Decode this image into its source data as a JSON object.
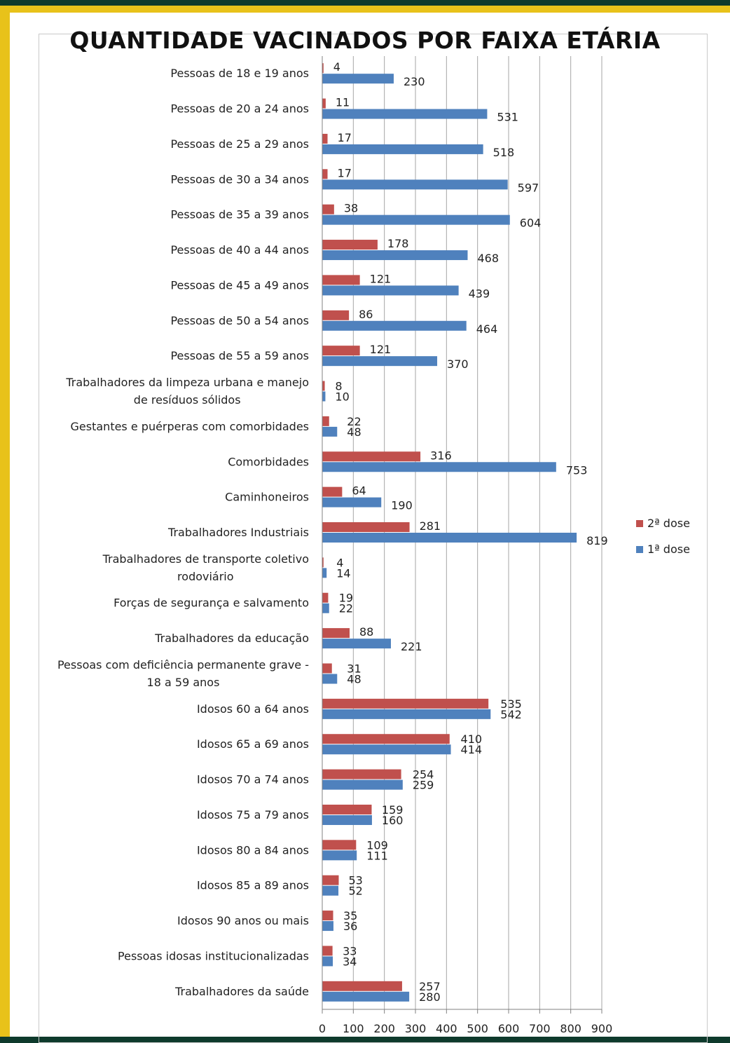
{
  "chart_data": {
    "type": "bar",
    "orientation": "horizontal",
    "title": "QUANTIDADE VACINADOS POR FAIXA ETÁRIA",
    "categories": [
      "Pessoas de 18 e 19 anos",
      "Pessoas de 20 a 24 anos",
      "Pessoas de 25 a 29 anos",
      "Pessoas de 30 a 34 anos",
      "Pessoas de 35 a 39 anos",
      "Pessoas de 40 a 44 anos",
      "Pessoas de 45 a 49 anos",
      "Pessoas de 50 a 54 anos",
      "Pessoas de 55 a 59 anos",
      "Trabalhadores da limpeza urbana e manejo de resíduos sólidos",
      "Gestantes e puérperas com comorbidades",
      "Comorbidades",
      "Caminhoneiros",
      "Trabalhadores Industriais",
      "Trabalhadores de transporte coletivo rodoviário",
      "Forças de segurança e salvamento",
      "Trabalhadores da educação",
      "Pessoas com deficiência permanente grave - 18 a 59 anos",
      "Idosos 60 a 64 anos",
      "Idosos 65 a 69 anos",
      "Idosos 70 a 74 anos",
      "Idosos 75 a 79 anos",
      "Idosos 80 a 84 anos",
      "Idosos 85 a 89 anos",
      "Idosos 90 anos ou mais",
      "Pessoas idosas institucionalizadas",
      "Trabalhadores da saúde"
    ],
    "category_lines": [
      [
        "Pessoas de 18 e 19 anos"
      ],
      [
        "Pessoas de 20 a 24 anos"
      ],
      [
        "Pessoas de 25 a 29 anos"
      ],
      [
        "Pessoas de 30 a 34 anos"
      ],
      [
        "Pessoas de 35 a 39 anos"
      ],
      [
        "Pessoas de 40 a 44 anos"
      ],
      [
        "Pessoas de 45 a 49 anos"
      ],
      [
        "Pessoas de 50 a 54 anos"
      ],
      [
        "Pessoas de 55 a 59 anos"
      ],
      [
        "Trabalhadores da limpeza urbana e manejo",
        "de resíduos sólidos"
      ],
      [
        "Gestantes e puérperas com comorbidades"
      ],
      [
        "Comorbidades"
      ],
      [
        "Caminhoneiros"
      ],
      [
        "Trabalhadores Industriais"
      ],
      [
        "Trabalhadores de transporte coletivo",
        "rodoviário"
      ],
      [
        "Forças de segurança e salvamento"
      ],
      [
        "Trabalhadores da educação"
      ],
      [
        "Pessoas com deficiência permanente grave -",
        "18 a 59 anos"
      ],
      [
        "Idosos 60 a 64 anos"
      ],
      [
        "Idosos 65 a 69 anos"
      ],
      [
        "Idosos 70 a 74 anos"
      ],
      [
        "Idosos 75 a 79 anos"
      ],
      [
        "Idosos 80 a 84 anos"
      ],
      [
        "Idosos 85 a 89 anos"
      ],
      [
        "Idosos 90 anos ou mais"
      ],
      [
        "Pessoas idosas institucionalizadas"
      ],
      [
        "Trabalhadores da saúde"
      ]
    ],
    "series": [
      {
        "name": "2ª dose",
        "color": "#c0504d",
        "values": [
          4,
          11,
          17,
          17,
          38,
          178,
          121,
          86,
          121,
          8,
          22,
          316,
          64,
          281,
          4,
          19,
          88,
          31,
          535,
          410,
          254,
          159,
          109,
          53,
          35,
          33,
          257
        ]
      },
      {
        "name": "1ª dose",
        "color": "#4f81bd",
        "values": [
          230,
          531,
          518,
          597,
          604,
          468,
          439,
          464,
          370,
          10,
          48,
          753,
          190,
          819,
          14,
          22,
          221,
          48,
          542,
          414,
          259,
          160,
          111,
          52,
          36,
          34,
          280
        ]
      }
    ],
    "xlim": [
      0,
      900
    ],
    "xticks": [
      "0",
      "100",
      "200",
      "300",
      "400",
      "500",
      "600",
      "700",
      "800",
      "900"
    ],
    "grid": "vertical",
    "legend": "right",
    "legend_order": [
      "2ª dose",
      "1ª dose"
    ],
    "data_labels": true
  }
}
